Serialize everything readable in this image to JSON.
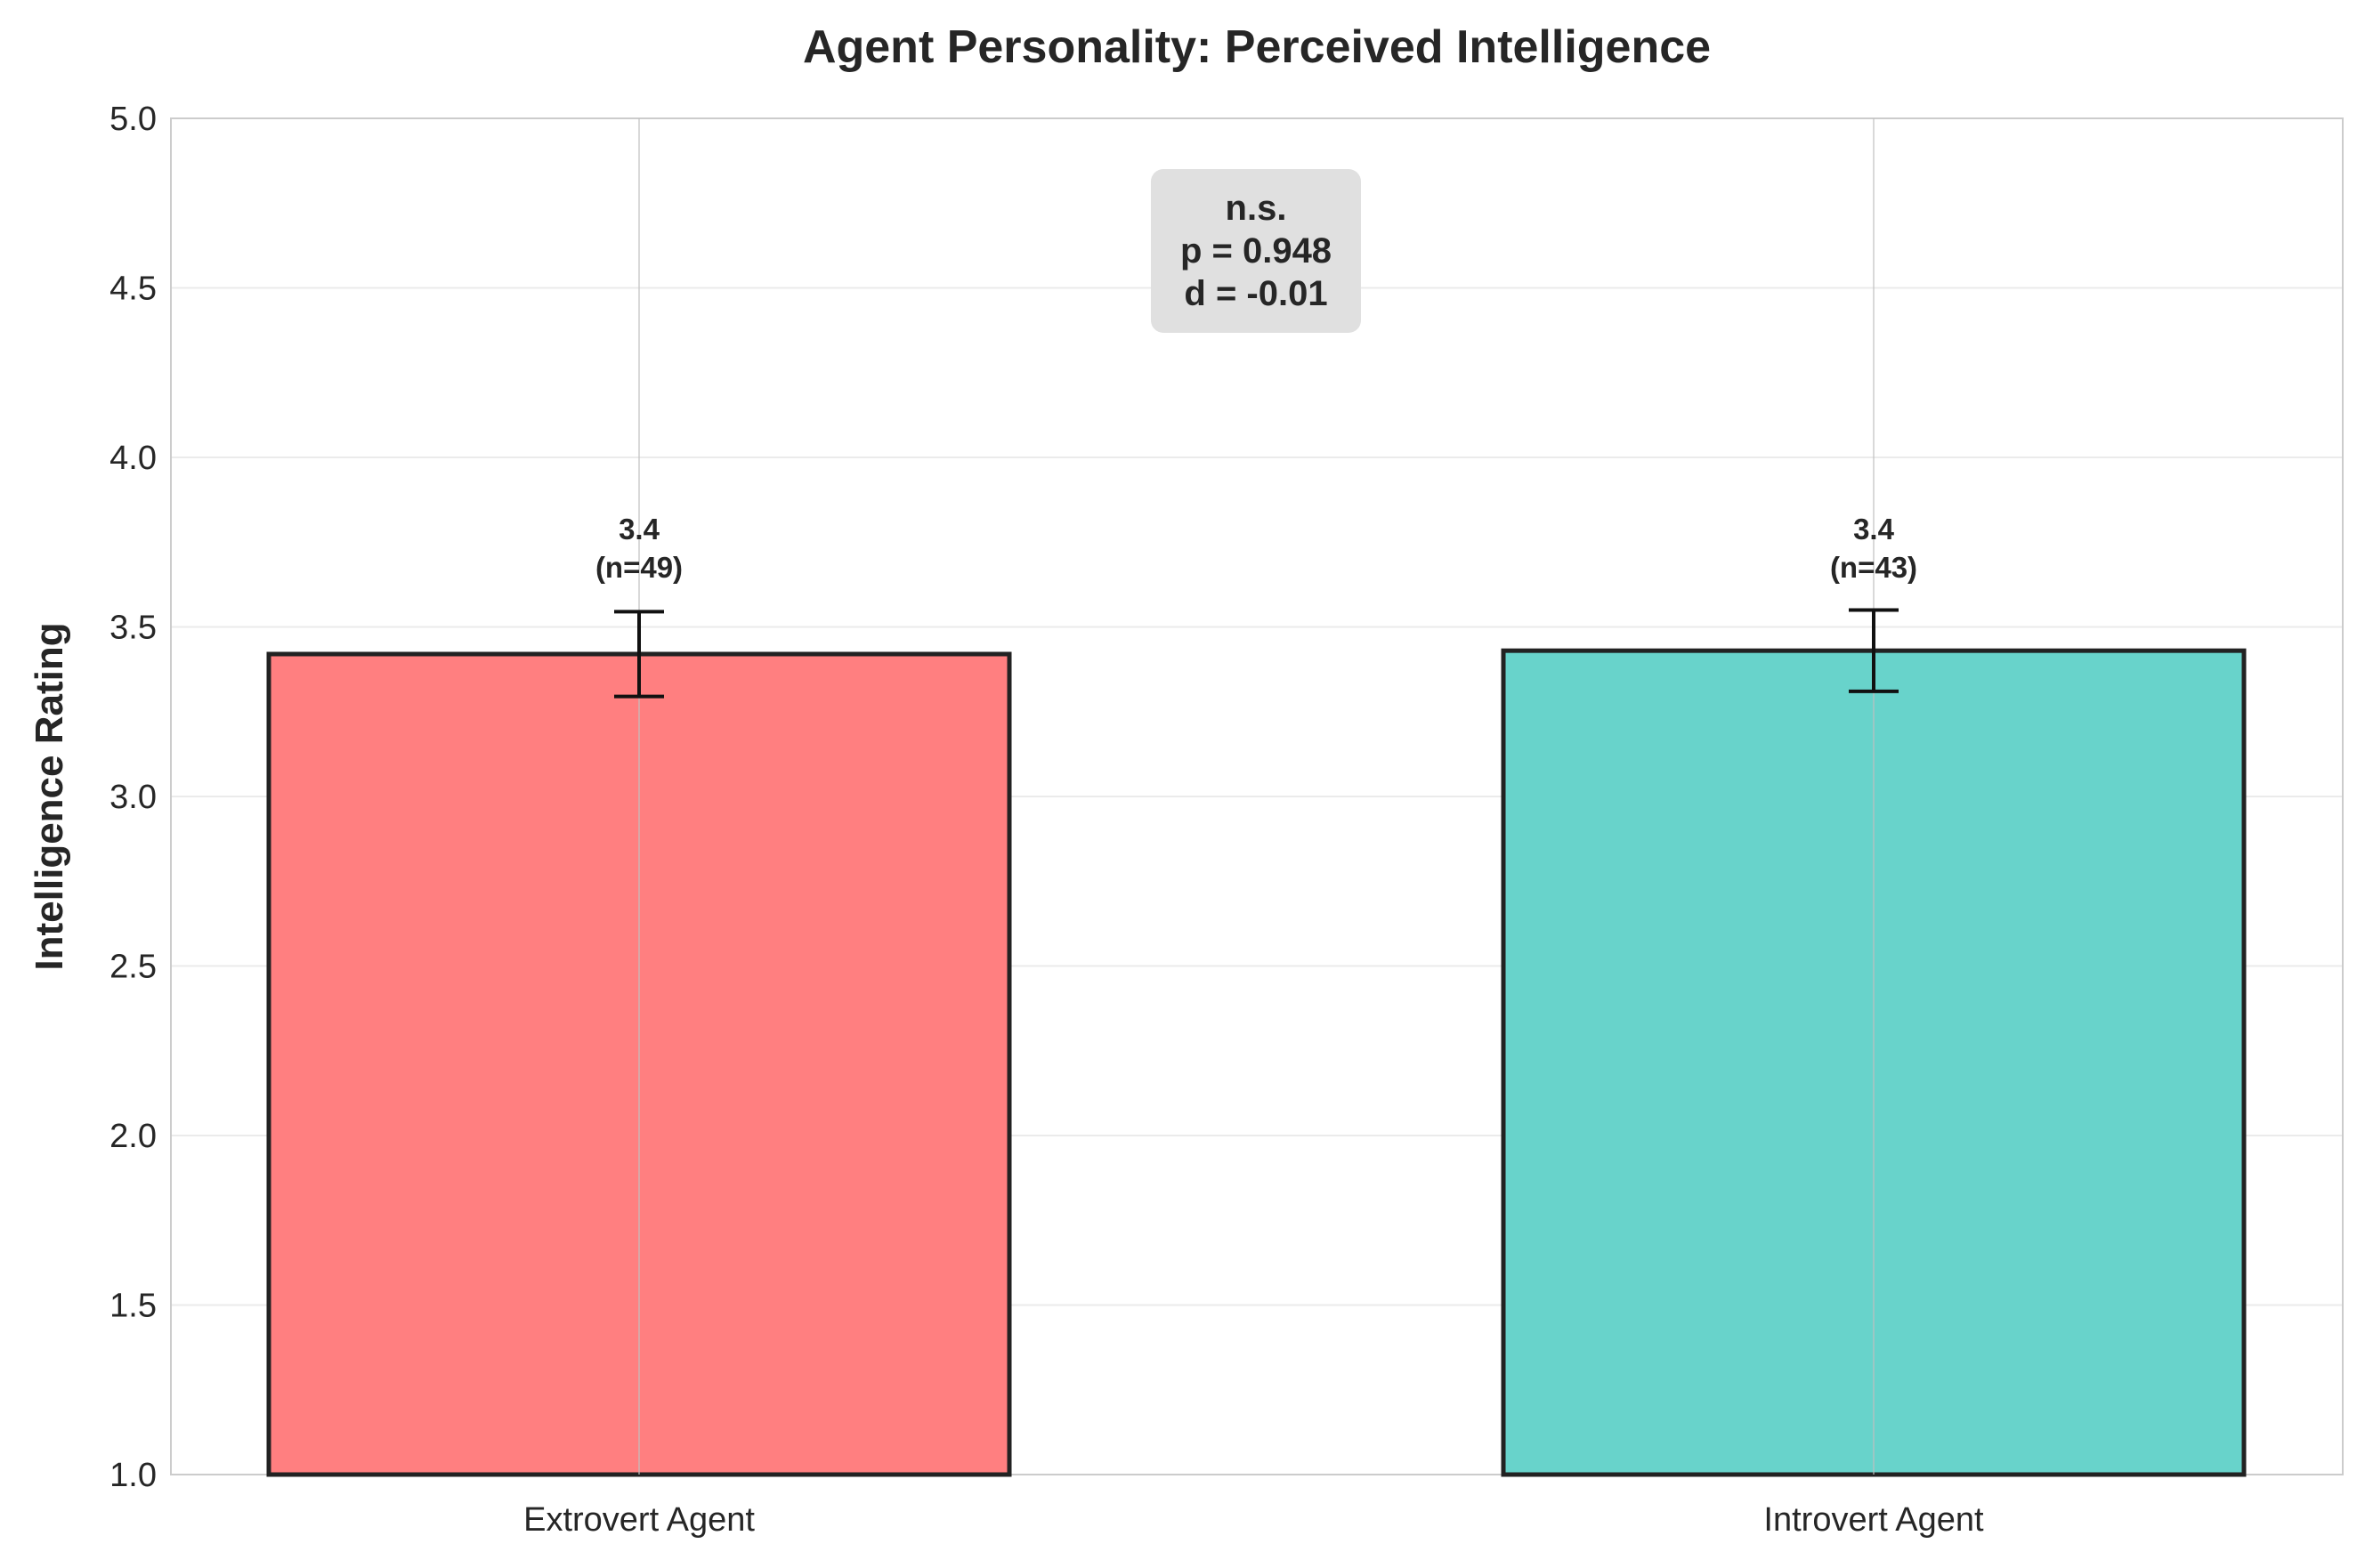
{
  "chart_data": {
    "type": "bar",
    "title": "Agent Personality: Perceived Intelligence",
    "xlabel": "",
    "ylabel": "Intelligence Rating",
    "ylim": [
      1.0,
      5.0
    ],
    "yticks": [
      "1.0",
      "1.5",
      "2.0",
      "2.5",
      "3.0",
      "3.5",
      "4.0",
      "4.5",
      "5.0"
    ],
    "categories": [
      "Extrovert Agent",
      "Introvert Agent"
    ],
    "values": [
      3.42,
      3.43
    ],
    "error": [
      0.125,
      0.12
    ],
    "data_labels": [
      {
        "value": "3.4",
        "n": "(n=49)"
      },
      {
        "value": "3.4",
        "n": "(n=43)"
      }
    ],
    "colors": [
      "#ff7f80",
      "#68d3cb"
    ],
    "edge_color": "#222222",
    "annotation": {
      "line1": "n.s.",
      "line2": "p = 0.948",
      "line3": "d = -0.01"
    },
    "grid": true,
    "legend": "none"
  }
}
